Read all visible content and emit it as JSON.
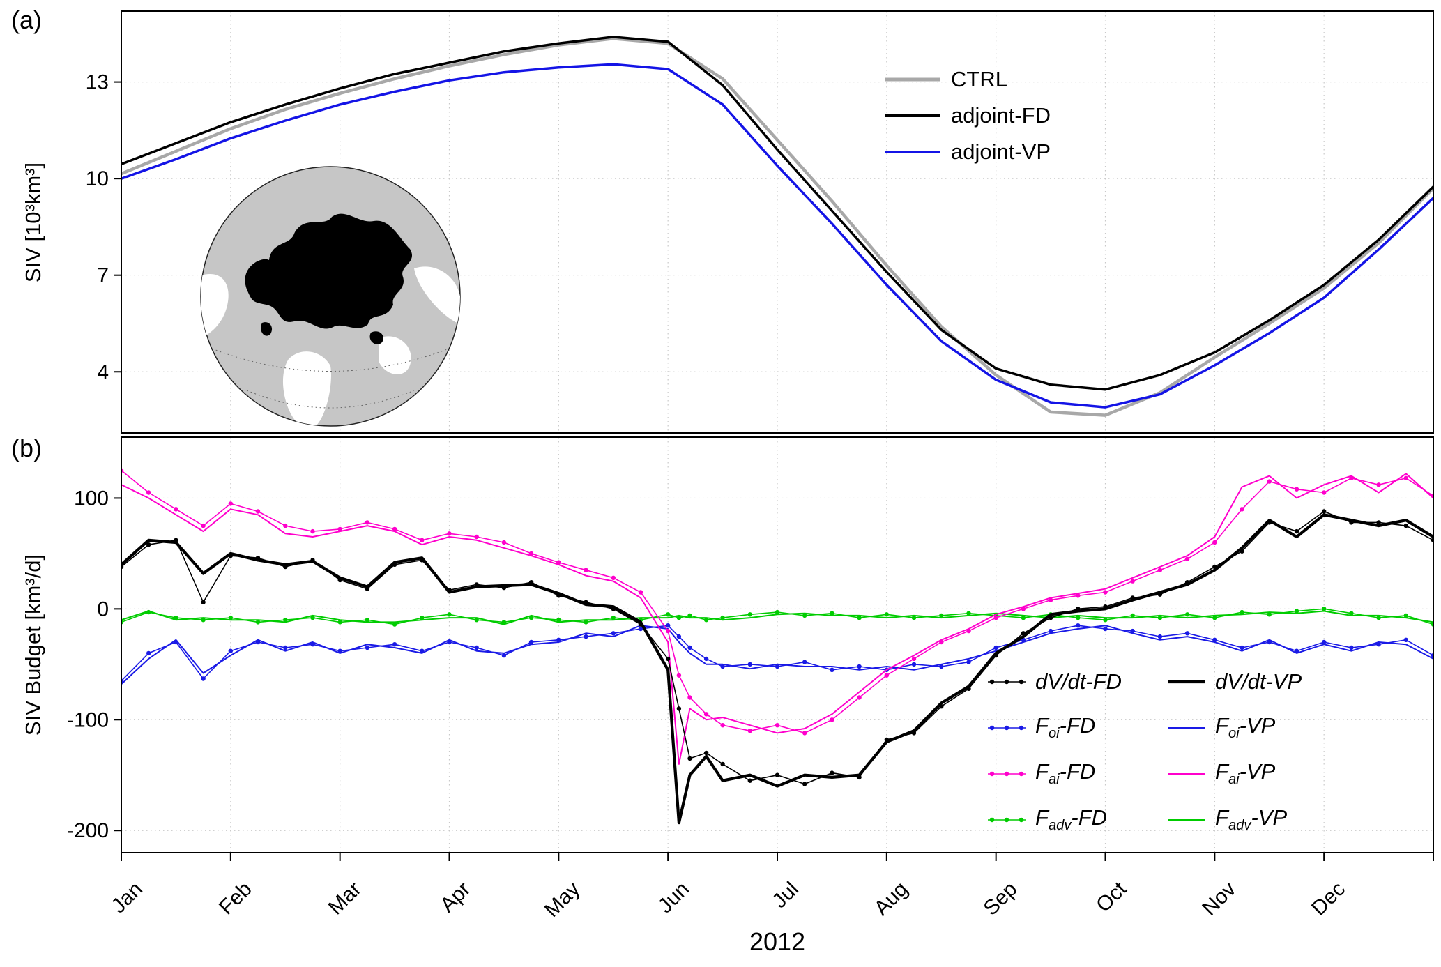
{
  "figure": {
    "panel_a_label": "(a)",
    "panel_b_label": "(b)",
    "x_title": "2012"
  },
  "chart_data": [
    {
      "id": "a",
      "type": "line",
      "title": "",
      "xlabel": "",
      "ylabel": "SIV [10³km³]",
      "xlim": [
        0,
        12
      ],
      "ylim": [
        2.1,
        15.2
      ],
      "yticks": [
        4,
        7,
        10,
        13
      ],
      "xticks": [
        0,
        1,
        2,
        3,
        4,
        5,
        6,
        7,
        8,
        9,
        10,
        11,
        12
      ],
      "xtick_labels": [
        "Jan",
        "Feb",
        "Mar",
        "Apr",
        "May",
        "Jun",
        "Jul",
        "Aug",
        "Sep",
        "Oct",
        "Nov",
        "Dec",
        ""
      ],
      "show_xtick_labels": false,
      "grid": true,
      "legend_position": "upper-right-inside",
      "x": [
        0,
        0.5,
        1,
        1.5,
        2,
        2.5,
        3,
        3.5,
        4,
        4.5,
        5,
        5.5,
        6,
        6.5,
        7,
        7.5,
        8,
        8.5,
        9,
        9.5,
        10,
        10.5,
        11,
        11.5,
        12
      ],
      "series": [
        {
          "name": "CTRL",
          "color": "#a8a8a8",
          "width": 4.5,
          "markers": false,
          "values": [
            10.15,
            10.85,
            11.55,
            12.15,
            12.65,
            13.1,
            13.5,
            13.85,
            14.15,
            14.35,
            14.2,
            13.1,
            11.2,
            9.3,
            7.3,
            5.4,
            3.9,
            2.75,
            2.65,
            3.35,
            4.45,
            5.5,
            6.6,
            8.0,
            9.7
          ]
        },
        {
          "name": "adjoint-FD",
          "color": "#000000",
          "width": 3.5,
          "markers": false,
          "values": [
            10.45,
            11.1,
            11.75,
            12.3,
            12.8,
            13.25,
            13.6,
            13.95,
            14.2,
            14.4,
            14.25,
            12.9,
            10.9,
            9.0,
            7.1,
            5.3,
            4.1,
            3.6,
            3.45,
            3.9,
            4.6,
            5.6,
            6.7,
            8.1,
            9.75
          ]
        },
        {
          "name": "adjoint-VP",
          "color": "#1414e6",
          "width": 3.5,
          "markers": false,
          "values": [
            10.0,
            10.6,
            11.25,
            11.8,
            12.3,
            12.7,
            13.05,
            13.3,
            13.45,
            13.55,
            13.4,
            12.3,
            10.4,
            8.6,
            6.7,
            4.95,
            3.75,
            3.05,
            2.9,
            3.3,
            4.2,
            5.2,
            6.3,
            7.8,
            9.4
          ]
        }
      ]
    },
    {
      "id": "b",
      "type": "line",
      "title": "",
      "xlabel": "2012",
      "ylabel": "SIV Budget [km³/d]",
      "xlim": [
        0,
        12
      ],
      "ylim": [
        -220,
        155
      ],
      "yticks": [
        -200,
        -100,
        0,
        100
      ],
      "xticks": [
        0,
        1,
        2,
        3,
        4,
        5,
        6,
        7,
        8,
        9,
        10,
        11,
        12
      ],
      "xtick_labels": [
        "Jan",
        "Feb",
        "Mar",
        "Apr",
        "May",
        "Jun",
        "Jul",
        "Aug",
        "Sep",
        "Oct",
        "Nov",
        "Dec",
        ""
      ],
      "show_xtick_labels": true,
      "grid": true,
      "legend_position": "lower-right-inside",
      "x": [
        0,
        0.25,
        0.5,
        0.75,
        1,
        1.25,
        1.5,
        1.75,
        2,
        2.25,
        2.5,
        2.75,
        3,
        3.25,
        3.5,
        3.75,
        4,
        4.25,
        4.5,
        4.75,
        5,
        5.1,
        5.2,
        5.35,
        5.5,
        5.75,
        6,
        6.25,
        6.5,
        6.75,
        7,
        7.25,
        7.5,
        7.75,
        8,
        8.25,
        8.5,
        8.75,
        9,
        9.25,
        9.5,
        9.75,
        10,
        10.25,
        10.5,
        10.75,
        11,
        11.25,
        11.5,
        11.75,
        12
      ],
      "series": [
        {
          "name": "F_adv-FD",
          "color": "#00cc00",
          "width": 1.6,
          "markers": true,
          "values": [
            -12,
            -3,
            -8,
            -10,
            -8,
            -12,
            -10,
            -8,
            -12,
            -10,
            -14,
            -8,
            -5,
            -10,
            -12,
            -8,
            -10,
            -12,
            -8,
            -10,
            -5,
            -8,
            -6,
            -10,
            -8,
            -5,
            -3,
            -6,
            -4,
            -8,
            -5,
            -8,
            -6,
            -4,
            -6,
            -8,
            -5,
            -8,
            -10,
            -6,
            -8,
            -5,
            -8,
            -3,
            -5,
            -2,
            0,
            -4,
            -8,
            -6,
            -14
          ]
        },
        {
          "name": "F_adv-VP",
          "color": "#00cc00",
          "width": 2,
          "markers": false,
          "values": [
            -10,
            -2,
            -10,
            -8,
            -10,
            -10,
            -12,
            -6,
            -10,
            -12,
            -12,
            -10,
            -8,
            -8,
            -14,
            -6,
            -12,
            -10,
            -10,
            -8,
            -8,
            -6,
            -8,
            -8,
            -10,
            -8,
            -5,
            -4,
            -6,
            -6,
            -8,
            -6,
            -8,
            -6,
            -4,
            -6,
            -8,
            -6,
            -8,
            -8,
            -6,
            -8,
            -6,
            -5,
            -3,
            -4,
            -2,
            -6,
            -6,
            -8,
            -12
          ]
        },
        {
          "name": "F_oi-FD",
          "color": "#1a1ae6",
          "width": 1.6,
          "markers": true,
          "values": [
            -65,
            -40,
            -30,
            -63,
            -38,
            -30,
            -35,
            -32,
            -38,
            -35,
            -32,
            -38,
            -30,
            -35,
            -42,
            -30,
            -28,
            -25,
            -22,
            -18,
            -15,
            -25,
            -35,
            -45,
            -52,
            -50,
            -52,
            -48,
            -55,
            -52,
            -55,
            -50,
            -52,
            -48,
            -35,
            -28,
            -20,
            -15,
            -18,
            -20,
            -25,
            -22,
            -28,
            -35,
            -30,
            -38,
            -30,
            -35,
            -32,
            -28,
            -42
          ]
        },
        {
          "name": "F_oi-VP",
          "color": "#1a1ae6",
          "width": 2,
          "markers": false,
          "values": [
            -68,
            -45,
            -28,
            -58,
            -42,
            -28,
            -38,
            -30,
            -40,
            -32,
            -35,
            -40,
            -28,
            -38,
            -40,
            -32,
            -30,
            -22,
            -25,
            -15,
            -18,
            -30,
            -40,
            -50,
            -50,
            -54,
            -50,
            -52,
            -52,
            -55,
            -52,
            -55,
            -50,
            -45,
            -38,
            -30,
            -22,
            -18,
            -15,
            -22,
            -28,
            -25,
            -30,
            -38,
            -28,
            -40,
            -32,
            -38,
            -30,
            -32,
            -45
          ]
        },
        {
          "name": "F_ai-FD",
          "color": "#ff00cc",
          "width": 1.6,
          "markers": true,
          "values": [
            125,
            105,
            90,
            75,
            95,
            88,
            75,
            70,
            72,
            78,
            72,
            62,
            68,
            65,
            60,
            50,
            42,
            35,
            28,
            15,
            -20,
            -60,
            -80,
            -95,
            -105,
            -110,
            -105,
            -112,
            -100,
            -80,
            -60,
            -45,
            -30,
            -20,
            -8,
            0,
            8,
            12,
            15,
            25,
            35,
            45,
            60,
            90,
            115,
            108,
            105,
            118,
            112,
            118,
            102
          ]
        },
        {
          "name": "F_ai-VP",
          "color": "#ff00cc",
          "width": 2,
          "markers": false,
          "values": [
            112,
            100,
            85,
            70,
            90,
            85,
            68,
            65,
            70,
            75,
            70,
            58,
            65,
            62,
            55,
            48,
            40,
            30,
            25,
            10,
            -30,
            -140,
            -90,
            -100,
            -98,
            -105,
            -112,
            -108,
            -95,
            -75,
            -55,
            -42,
            -28,
            -18,
            -5,
            2,
            10,
            14,
            18,
            28,
            38,
            48,
            65,
            110,
            120,
            100,
            112,
            120,
            105,
            122,
            100
          ]
        },
        {
          "name": "dV/dt-FD",
          "color": "#000000",
          "width": 1.6,
          "markers": true,
          "values": [
            38,
            58,
            62,
            6,
            48,
            46,
            38,
            44,
            26,
            18,
            40,
            44,
            17,
            22,
            19,
            24,
            12,
            6,
            0,
            -14,
            -45,
            -90,
            -135,
            -130,
            -140,
            -155,
            -150,
            -158,
            -148,
            -152,
            -118,
            -112,
            -88,
            -72,
            -42,
            -22,
            -8,
            0,
            2,
            10,
            13,
            24,
            38,
            52,
            78,
            70,
            88,
            78,
            78,
            75,
            62
          ]
        },
        {
          "name": "dV/dt-VP",
          "color": "#000000",
          "width": 4.2,
          "markers": false,
          "values": [
            40,
            62,
            60,
            32,
            50,
            44,
            40,
            43,
            28,
            20,
            42,
            46,
            15,
            20,
            21,
            22,
            14,
            4,
            2,
            -12,
            -55,
            -193,
            -150,
            -133,
            -155,
            -150,
            -160,
            -150,
            -152,
            -150,
            -120,
            -110,
            -85,
            -70,
            -40,
            -25,
            -5,
            -2,
            0,
            8,
            15,
            22,
            35,
            55,
            80,
            65,
            85,
            80,
            75,
            80,
            65
          ]
        }
      ]
    }
  ],
  "legend_a": {
    "items": [
      {
        "label": "CTRL",
        "color": "#a8a8a8",
        "width": 5
      },
      {
        "label": "adjoint-FD",
        "color": "#000000",
        "width": 4
      },
      {
        "label": "adjoint-VP",
        "color": "#1414e6",
        "width": 4
      }
    ]
  },
  "legend_b": {
    "columns": [
      [
        {
          "pre": "dV/dt",
          "sub": "",
          "post": "-FD",
          "color": "#000000",
          "width": 1.6,
          "markers": true
        },
        {
          "pre": "F",
          "sub": "oi",
          "post": "-FD",
          "color": "#1a1ae6",
          "width": 1.6,
          "markers": true
        },
        {
          "pre": "F",
          "sub": "ai",
          "post": "-FD",
          "color": "#ff00cc",
          "width": 1.6,
          "markers": true
        },
        {
          "pre": "F",
          "sub": "adv",
          "post": "-FD",
          "color": "#00cc00",
          "width": 1.6,
          "markers": true
        }
      ],
      [
        {
          "pre": "dV/dt",
          "sub": "",
          "post": "-VP",
          "color": "#000000",
          "width": 4.2,
          "markers": false
        },
        {
          "pre": "F",
          "sub": "oi",
          "post": "-VP",
          "color": "#1a1ae6",
          "width": 2,
          "markers": false
        },
        {
          "pre": "F",
          "sub": "ai",
          "post": "-VP",
          "color": "#ff00cc",
          "width": 2,
          "markers": false
        },
        {
          "pre": "F",
          "sub": "adv",
          "post": "-VP",
          "color": "#00cc00",
          "width": 2,
          "markers": false
        }
      ]
    ]
  }
}
